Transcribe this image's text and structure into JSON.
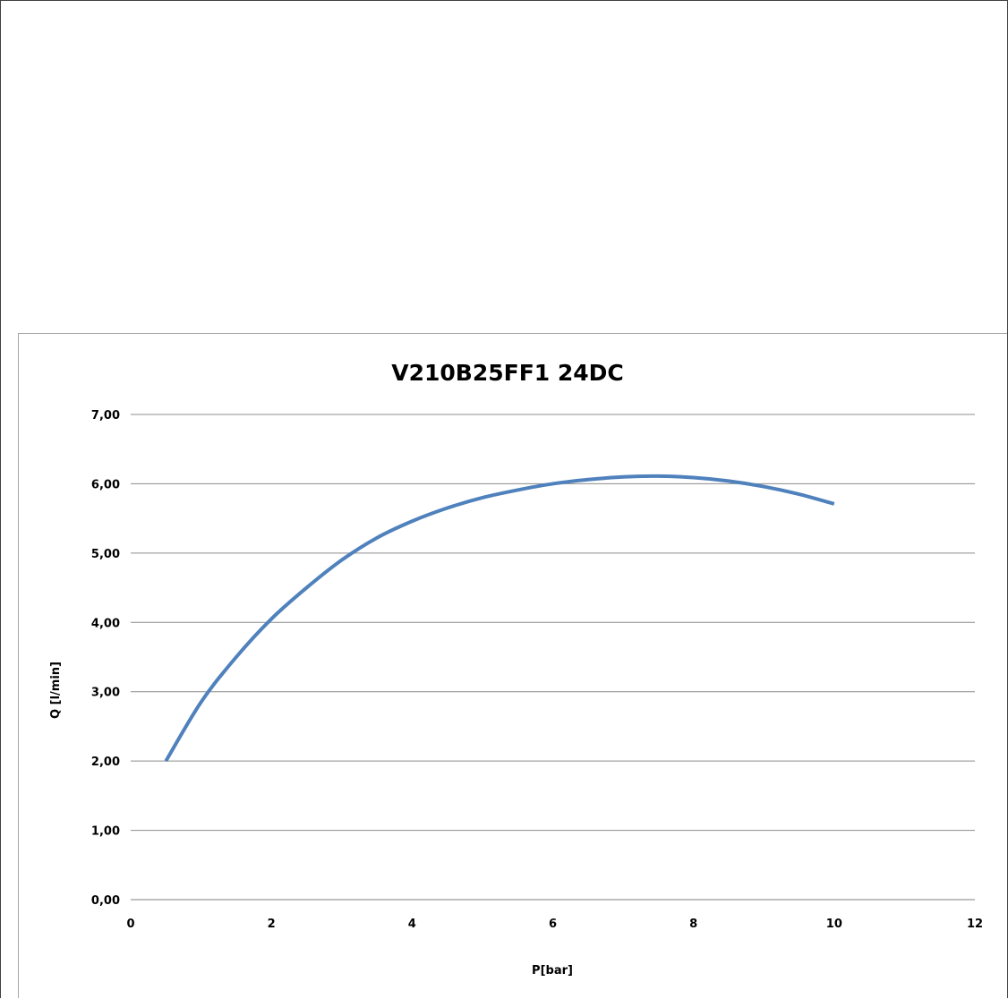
{
  "chart_data": {
    "type": "line",
    "title": "V210B25FF1 24DC",
    "xlabel": "P[bar]",
    "ylabel": "Q [l/min]",
    "xlim": [
      0,
      12
    ],
    "ylim": [
      0,
      7
    ],
    "x_ticks": [
      0,
      2,
      4,
      6,
      8,
      10,
      12
    ],
    "y_ticks": [
      "0,00",
      "1,00",
      "2,00",
      "3,00",
      "4,00",
      "5,00",
      "6,00",
      "7,00"
    ],
    "grid": "horizontal",
    "legend": "none",
    "series": [
      {
        "color": "#4f81bd",
        "x": [
          0.5,
          1.0,
          1.5,
          2.0,
          2.5,
          3.0,
          3.5,
          4.0,
          4.5,
          5.0,
          5.5,
          6.0,
          6.5,
          7.0,
          7.5,
          8.0,
          8.5,
          9.0,
          9.5,
          10.0
        ],
        "y": [
          2.0,
          2.85,
          3.5,
          4.05,
          4.5,
          4.9,
          5.22,
          5.46,
          5.65,
          5.8,
          5.91,
          6.0,
          6.06,
          6.1,
          6.11,
          6.09,
          6.04,
          5.96,
          5.85,
          5.71
        ]
      }
    ]
  }
}
